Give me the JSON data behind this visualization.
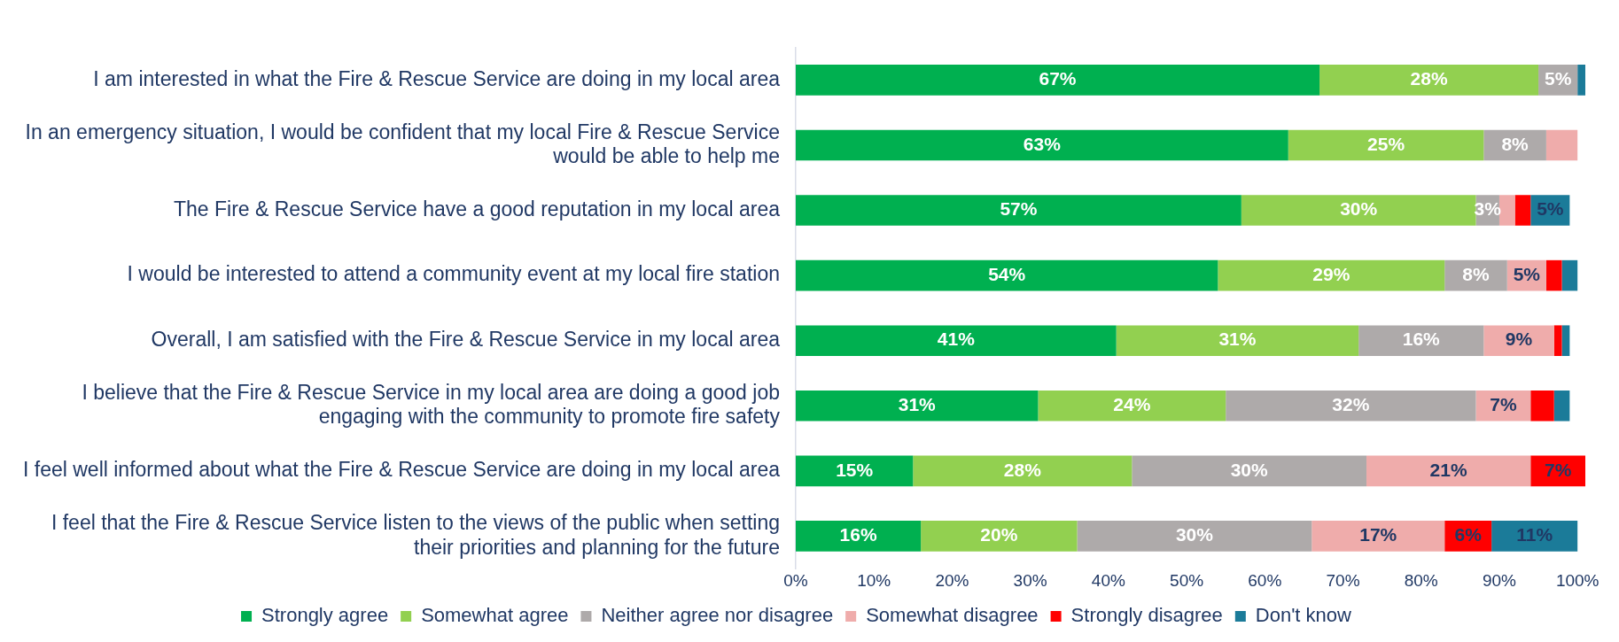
{
  "chart_data": {
    "type": "bar",
    "orientation": "horizontal",
    "stacked": true,
    "categories": [
      "I am interested in what the Fire & Rescue Service are doing in my local area",
      "In an emergency situation, I would be confident that my local Fire & Rescue Service would be able to help me",
      "The Fire & Rescue Service have a good reputation in my local area",
      "I would be interested to attend a community event at my local fire station",
      "Overall, I am satisfied with the Fire & Rescue Service in my local area",
      "I believe that the Fire & Rescue Service in my local area are doing a good job engaging with the community to promote fire safety",
      "I feel well informed about what the Fire & Rescue Service are doing in my local area",
      "I feel that the Fire & Rescue Service listen to the views of the public when setting their priorities and planning for the future"
    ],
    "series": [
      {
        "name": "Strongly agree",
        "color": "#00b050",
        "values": [
          67,
          63,
          57,
          54,
          41,
          31,
          15,
          16
        ],
        "value_labels": [
          "67%",
          "63%",
          "57%",
          "54%",
          "41%",
          "31%",
          "15%",
          "16%"
        ]
      },
      {
        "name": "Somewhat agree",
        "color": "#92d050",
        "values": [
          28,
          25,
          30,
          29,
          31,
          24,
          28,
          20
        ],
        "value_labels": [
          "28%",
          "25%",
          "30%",
          "29%",
          "31%",
          "24%",
          "28%",
          "20%"
        ]
      },
      {
        "name": "Neither agree nor disagree",
        "color": "#aeaaaa",
        "values": [
          5,
          8,
          3,
          8,
          16,
          32,
          30,
          30
        ],
        "value_labels": [
          "5%",
          "8%",
          "3%",
          "8%",
          "16%",
          "32%",
          "30%",
          "30%"
        ]
      },
      {
        "name": "Somewhat disagree",
        "color": "#efacab",
        "values": [
          0,
          4,
          2,
          5,
          9,
          7,
          21,
          17
        ],
        "value_labels": [
          null,
          null,
          null,
          "5%",
          "9%",
          "7%",
          "21%",
          "17%"
        ]
      },
      {
        "name": "Strongly disagree",
        "color": "#ff0000",
        "values": [
          0,
          0,
          2,
          2,
          1,
          3,
          7,
          6
        ],
        "value_labels": [
          null,
          null,
          null,
          null,
          null,
          null,
          "7%",
          "6%"
        ]
      },
      {
        "name": "Don't know",
        "color": "#1b7b99",
        "values": [
          1,
          0,
          5,
          2,
          1,
          2,
          0,
          11
        ],
        "value_labels": [
          null,
          null,
          "5%",
          null,
          null,
          null,
          null,
          "11%"
        ]
      }
    ],
    "xlim": [
      0,
      101
    ],
    "xticks": [
      {
        "value": 0,
        "label": "0%"
      },
      {
        "value": 10,
        "label": "10%"
      },
      {
        "value": 20,
        "label": "20%"
      },
      {
        "value": 30,
        "label": "30%"
      },
      {
        "value": 40,
        "label": "40%"
      },
      {
        "value": 50,
        "label": "50%"
      },
      {
        "value": 60,
        "label": "60%"
      },
      {
        "value": 70,
        "label": "70%"
      },
      {
        "value": 80,
        "label": "80%"
      },
      {
        "value": 90,
        "label": "90%"
      },
      {
        "value": 100,
        "label": "100%"
      }
    ],
    "grid": false,
    "legend": "bottom"
  }
}
